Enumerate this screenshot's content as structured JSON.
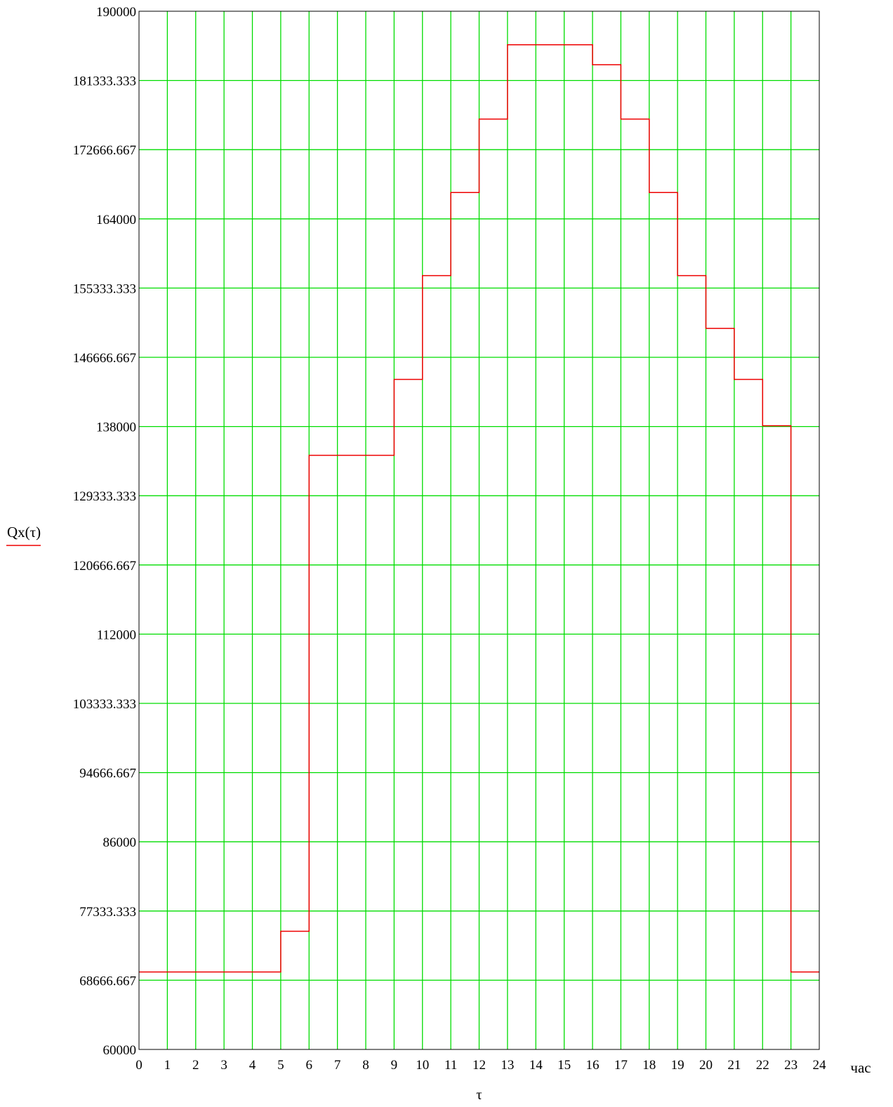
{
  "chart_data": {
    "type": "line",
    "title": "",
    "xlabel": "τ",
    "xunit": "час",
    "ylabel": "Qx(τ)",
    "xlim": [
      0,
      24
    ],
    "ylim": [
      60000,
      190000
    ],
    "grid": true,
    "x_ticks": [
      "0",
      "1",
      "2",
      "3",
      "4",
      "5",
      "6",
      "7",
      "8",
      "9",
      "10",
      "11",
      "12",
      "13",
      "14",
      "15",
      "16",
      "17",
      "18",
      "19",
      "20",
      "21",
      "22",
      "23",
      "24"
    ],
    "y_ticks": [
      "60000",
      "68666.667",
      "77333.333",
      "86000",
      "94666.667",
      "103333.333",
      "112000",
      "120666.667",
      "129333.333",
      "138000",
      "146666.667",
      "155333.333",
      "164000",
      "172666.667",
      "181333.333",
      "190000"
    ],
    "series": [
      {
        "name": "Qx(τ)",
        "step": "post",
        "x": [
          0,
          1,
          2,
          3,
          4,
          5,
          6,
          7,
          8,
          9,
          10,
          11,
          12,
          13,
          14,
          15,
          16,
          17,
          18,
          19,
          20,
          21,
          22,
          23
        ],
        "values": [
          69700,
          69700,
          69700,
          69700,
          69700,
          74800,
          134400,
          134400,
          134400,
          143900,
          156900,
          167300,
          176500,
          185800,
          185800,
          185800,
          183300,
          176500,
          167300,
          156900,
          150300,
          143900,
          138100,
          69700
        ]
      }
    ],
    "colors": {
      "grid": "#00dd00",
      "series": "#ee0000",
      "axis": "#000000"
    }
  }
}
